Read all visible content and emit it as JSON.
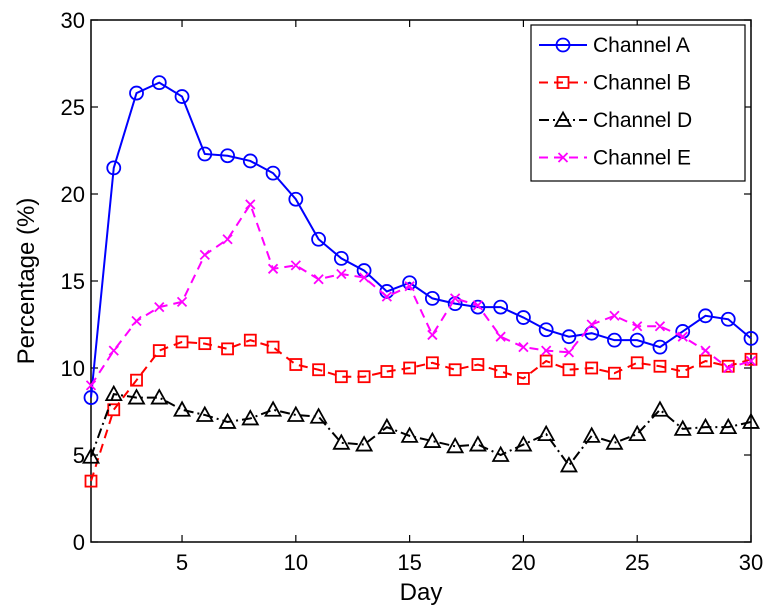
{
  "chart_data": {
    "type": "line",
    "xlabel": "Day",
    "ylabel": "Percentage (%)",
    "xlim": [
      1,
      30
    ],
    "ylim": [
      0,
      30
    ],
    "xticks": [
      5,
      10,
      15,
      20,
      25,
      30
    ],
    "yticks": [
      0,
      5,
      10,
      15,
      20,
      25,
      30
    ],
    "grid": false,
    "legend_position": "top-right",
    "x": [
      1,
      2,
      3,
      4,
      5,
      6,
      7,
      8,
      9,
      10,
      11,
      12,
      13,
      14,
      15,
      16,
      17,
      18,
      19,
      20,
      21,
      22,
      23,
      24,
      25,
      26,
      27,
      28,
      29,
      30
    ],
    "series": [
      {
        "name": "Channel A",
        "color": "#0000ff",
        "marker": "circle",
        "line": "solid",
        "values": [
          8.3,
          21.5,
          25.8,
          26.4,
          25.6,
          22.3,
          22.2,
          21.9,
          21.2,
          19.7,
          17.4,
          16.3,
          15.6,
          14.4,
          14.9,
          14.0,
          13.7,
          13.5,
          13.5,
          12.9,
          12.2,
          11.8,
          12.0,
          11.6,
          11.6,
          11.2,
          12.1,
          13.0,
          12.8,
          11.7
        ]
      },
      {
        "name": "Channel B",
        "color": "#ff0000",
        "marker": "square",
        "line": "dashed",
        "values": [
          3.5,
          7.6,
          9.3,
          11.0,
          11.5,
          11.4,
          11.1,
          11.6,
          11.2,
          10.2,
          9.9,
          9.5,
          9.5,
          9.8,
          10.0,
          10.3,
          9.9,
          10.2,
          9.8,
          9.4,
          10.4,
          9.9,
          10.0,
          9.7,
          10.3,
          10.1,
          9.8,
          10.4,
          10.1,
          10.5
        ]
      },
      {
        "name": "Channel D",
        "color": "#000000",
        "marker": "triangle",
        "line": "dashdot",
        "values": [
          4.9,
          8.5,
          8.3,
          8.3,
          7.6,
          7.3,
          6.9,
          7.1,
          7.6,
          7.3,
          7.2,
          5.7,
          5.6,
          6.6,
          6.1,
          5.8,
          5.5,
          5.6,
          5.0,
          5.6,
          6.2,
          4.4,
          6.1,
          5.7,
          6.2,
          7.6,
          6.5,
          6.6,
          6.6,
          6.9
        ]
      },
      {
        "name": "Channel E",
        "color": "#ff00ff",
        "marker": "x",
        "line": "dashed",
        "values": [
          9.0,
          11.0,
          12.7,
          13.5,
          13.8,
          16.5,
          17.4,
          19.4,
          15.7,
          15.9,
          15.1,
          15.4,
          15.2,
          14.1,
          14.7,
          11.9,
          14.0,
          13.6,
          11.8,
          11.2,
          11.0,
          10.9,
          12.5,
          13.0,
          12.4,
          12.4,
          11.8,
          11.0,
          10.0,
          10.4
        ]
      }
    ]
  }
}
